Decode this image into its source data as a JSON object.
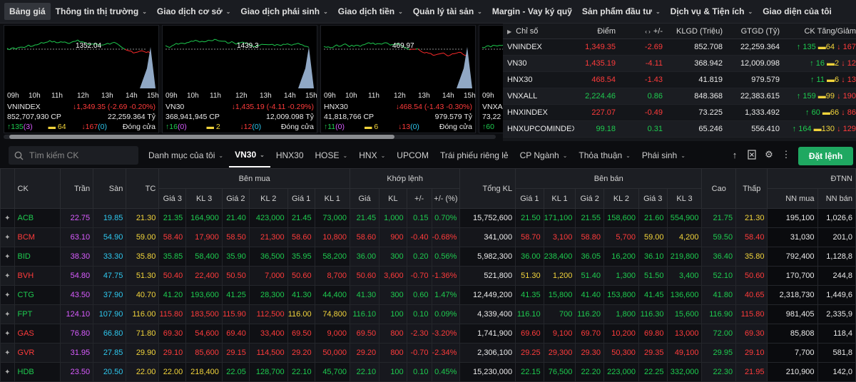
{
  "nav": [
    {
      "label": "Bảng giá",
      "active": true,
      "chev": false
    },
    {
      "label": "Thông tin thị trường",
      "chev": true
    },
    {
      "label": "Giao dịch cơ sở",
      "chev": true
    },
    {
      "label": "Giao dịch phái sinh",
      "chev": true
    },
    {
      "label": "Giao dịch tiền",
      "chev": true
    },
    {
      "label": "Quản lý tài sản",
      "chev": true
    },
    {
      "label": "Margin - Vay ký quỹ",
      "chev": false
    },
    {
      "label": "Sản phẩm đầu tư",
      "chev": true
    },
    {
      "label": "Dịch vụ & Tiện ích",
      "chev": true
    },
    {
      "label": "Giao diện của tôi",
      "chev": false
    }
  ],
  "charts": [
    {
      "ref": "1352.04",
      "name": "VNINDEX",
      "change": "↓1,349.35 (-2.69 -0.20%)",
      "vol": "852,707,930 CP",
      "val": "22,259.364 Tỷ",
      "up": "↑135",
      "up2": "(3)",
      "ref_n": "64",
      "down": "↓167",
      "down2": "(0)",
      "status": "Đóng cửa"
    },
    {
      "ref": "1439.3",
      "name": "VN30",
      "change": "↓1,435.19 (-4.11 -0.29%)",
      "vol": "368,941,945 CP",
      "val": "12,009.098 Tỷ",
      "up": "↑16",
      "up2": "(0)",
      "ref_n": "2",
      "down": "↓12",
      "down2": "(0)",
      "status": "Đóng cửa"
    },
    {
      "ref": "469.97",
      "name": "HNX30",
      "change": "↓468.54 (-1.43 -0.30%)",
      "vol": "41,818,766 CP",
      "val": "979.579 Tỷ",
      "up": "↑11",
      "up2": "(0)",
      "ref_n": "6",
      "down": "↓13",
      "down2": "(0)",
      "status": "Đóng cửa"
    },
    {
      "ref": "",
      "name": "VNXAL",
      "change": "",
      "vol": "73,22",
      "val": "",
      "up": "↑60",
      "up2": "",
      "ref_n": "",
      "down": "",
      "down2": "",
      "status": ""
    }
  ],
  "chart_times": [
    "09h",
    "10h",
    "11h",
    "12h",
    "13h",
    "14h",
    "15h"
  ],
  "indices": {
    "headers": [
      "Chỉ số",
      "Điểm",
      "+/-",
      "KLGD (Triệu)",
      "GTGD (Tỷ)",
      "CK Tăng/Giảm"
    ],
    "rows": [
      {
        "name": "VNINDEX",
        "point": "1,349.35",
        "chg": "-2.69",
        "vol": "852.708",
        "val": "22,259.364",
        "up": "↑ 135",
        "ref": "64",
        "down": "↓ 167",
        "pc": "red",
        "cc": "red"
      },
      {
        "name": "VN30",
        "point": "1,435.19",
        "chg": "-4.11",
        "vol": "368.942",
        "val": "12,009.098",
        "up": "↑ 16",
        "ref": "2",
        "down": "↓ 12",
        "pc": "red",
        "cc": "red"
      },
      {
        "name": "HNX30",
        "point": "468.54",
        "chg": "-1.43",
        "vol": "41.819",
        "val": "979.579",
        "up": "↑ 11",
        "ref": "6",
        "down": "↓ 13",
        "pc": "red",
        "cc": "red"
      },
      {
        "name": "VNXALL",
        "point": "2,224.46",
        "chg": "0.86",
        "vol": "848.368",
        "val": "22,383.615",
        "up": "↑ 159",
        "ref": "99",
        "down": "↓ 190",
        "pc": "green",
        "cc": "green"
      },
      {
        "name": "HNXINDEX",
        "point": "227.07",
        "chg": "-0.49",
        "vol": "73.225",
        "val": "1,333.492",
        "up": "↑ 60",
        "ref": "66",
        "down": "↓ 86",
        "pc": "red",
        "cc": "red"
      },
      {
        "name": "HNXUPCOMINDEX",
        "point": "99.18",
        "chg": "0.31",
        "vol": "65.246",
        "val": "556.410",
        "up": "↑ 164",
        "ref": "130",
        "down": "↓ 129",
        "pc": "green",
        "cc": "green"
      }
    ]
  },
  "search": {
    "placeholder": "Tìm kiếm CK"
  },
  "tabs": [
    {
      "label": "Danh mục của tôi",
      "chev": true
    },
    {
      "label": "VN30",
      "chev": true,
      "active": true
    },
    {
      "label": "HNX30"
    },
    {
      "label": "HOSE",
      "chev": true
    },
    {
      "label": "HNX",
      "chev": true
    },
    {
      "label": "UPCOM"
    },
    {
      "label": "Trái phiếu riêng lẻ"
    },
    {
      "label": "CP Ngành",
      "chev": true
    },
    {
      "label": "Thỏa thuận",
      "chev": true
    },
    {
      "label": "Phái sinh",
      "chev": true
    }
  ],
  "order_button": "Đặt lệnh",
  "table": {
    "h1": {
      "ck": "CK",
      "ceil": "Trần",
      "floor": "Sàn",
      "ref": "TC",
      "buy": "Bên mua",
      "match": "Khớp lệnh",
      "total": "Tổng KL",
      "sell": "Bên bán",
      "high": "Cao",
      "low": "Thấp",
      "foreign": "ĐTNN"
    },
    "h2": [
      "Giá 3",
      "KL 3",
      "Giá 2",
      "KL 2",
      "Giá 1",
      "KL 1",
      "Giá",
      "KL",
      "+/-",
      "+/- (%)",
      "Giá 1",
      "KL 1",
      "Giá 2",
      "KL 2",
      "Giá 3",
      "KL 3",
      "NN mua",
      "NN bán"
    ],
    "rows": [
      [
        "ACB",
        "22.75",
        "19.85",
        "21.30",
        "21.35",
        "164,900",
        "21.40",
        "423,000",
        "21.45",
        "73,000",
        "21.45",
        "1,000",
        "0.15",
        "0.70%",
        "15,752,600",
        "21.50",
        "171,100",
        "21.55",
        "158,600",
        "21.60",
        "554,900",
        "21.75",
        "21.30",
        "195,100",
        "1,026,6"
      ],
      [
        "BCM",
        "63.10",
        "54.90",
        "59.00",
        "58.40",
        "17,900",
        "58.50",
        "21,300",
        "58.60",
        "10,800",
        "58.60",
        "900",
        "-0.40",
        "-0.68%",
        "341,000",
        "58.70",
        "3,100",
        "58.80",
        "5,700",
        "59.00",
        "4,200",
        "59.50",
        "58.40",
        "31,030",
        "201,0"
      ],
      [
        "BID",
        "38.30",
        "33.30",
        "35.80",
        "35.85",
        "58,400",
        "35.90",
        "36,500",
        "35.95",
        "58,200",
        "36.00",
        "300",
        "0.20",
        "0.56%",
        "5,982,300",
        "36.00",
        "238,400",
        "36.05",
        "16,200",
        "36.10",
        "219,800",
        "36.40",
        "35.80",
        "792,400",
        "1,128,8"
      ],
      [
        "BVH",
        "54.80",
        "47.75",
        "51.30",
        "50.40",
        "22,400",
        "50.50",
        "7,000",
        "50.60",
        "8,700",
        "50.60",
        "3,600",
        "-0.70",
        "-1.36%",
        "521,800",
        "51.30",
        "1,200",
        "51.40",
        "1,300",
        "51.50",
        "3,400",
        "52.10",
        "50.60",
        "170,700",
        "244,8"
      ],
      [
        "CTG",
        "43.50",
        "37.90",
        "40.70",
        "41.20",
        "193,600",
        "41.25",
        "28,300",
        "41.30",
        "44,400",
        "41.30",
        "300",
        "0.60",
        "1.47%",
        "12,449,200",
        "41.35",
        "15,800",
        "41.40",
        "153,800",
        "41.45",
        "136,600",
        "41.80",
        "40.65",
        "2,318,730",
        "1,449,6"
      ],
      [
        "FPT",
        "124.10",
        "107.90",
        "116.00",
        "115.80",
        "183,500",
        "115.90",
        "112,500",
        "116.00",
        "74,800",
        "116.10",
        "100",
        "0.10",
        "0.09%",
        "4,339,400",
        "116.10",
        "700",
        "116.20",
        "1,800",
        "116.30",
        "15,600",
        "116.90",
        "115.80",
        "981,405",
        "2,335,9"
      ],
      [
        "GAS",
        "76.80",
        "66.80",
        "71.80",
        "69.30",
        "54,600",
        "69.40",
        "33,400",
        "69.50",
        "9,000",
        "69.50",
        "800",
        "-2.30",
        "-3.20%",
        "1,741,900",
        "69.60",
        "9,100",
        "69.70",
        "10,200",
        "69.80",
        "13,000",
        "72.00",
        "69.30",
        "85,808",
        "118,4"
      ],
      [
        "GVR",
        "31.95",
        "27.85",
        "29.90",
        "29.10",
        "85,600",
        "29.15",
        "114,500",
        "29.20",
        "50,000",
        "29.20",
        "800",
        "-0.70",
        "-2.34%",
        "2,306,100",
        "29.25",
        "29,300",
        "29.30",
        "50,300",
        "29.35",
        "49,100",
        "29.95",
        "29.10",
        "7,700",
        "581,8"
      ],
      [
        "HDB",
        "23.50",
        "20.50",
        "22.00",
        "22.00",
        "218,400",
        "22.05",
        "128,700",
        "22.10",
        "45,700",
        "22.10",
        "100",
        "0.10",
        "0.45%",
        "15,230,000",
        "22.15",
        "76,500",
        "22.20",
        "223,000",
        "22.25",
        "332,000",
        "22.30",
        "21.95",
        "210,900",
        "142,0"
      ]
    ],
    "colors": [
      [
        "green",
        "purple",
        "cyan",
        "yellow",
        "green",
        "green",
        "green",
        "green",
        "green",
        "green",
        "green",
        "green",
        "green",
        "green",
        "white",
        "green",
        "green",
        "green",
        "green",
        "green",
        "green",
        "green",
        "yellow",
        "white",
        "white"
      ],
      [
        "red",
        "purple",
        "cyan",
        "yellow",
        "red",
        "red",
        "red",
        "red",
        "red",
        "red",
        "red",
        "red",
        "red",
        "red",
        "white",
        "red",
        "red",
        "red",
        "red",
        "yellow",
        "yellow",
        "green",
        "red",
        "white",
        "white"
      ],
      [
        "green",
        "purple",
        "cyan",
        "yellow",
        "green",
        "green",
        "green",
        "green",
        "green",
        "green",
        "green",
        "green",
        "green",
        "green",
        "white",
        "green",
        "green",
        "green",
        "green",
        "green",
        "green",
        "green",
        "yellow",
        "white",
        "white"
      ],
      [
        "red",
        "purple",
        "cyan",
        "yellow",
        "red",
        "red",
        "red",
        "red",
        "red",
        "red",
        "red",
        "red",
        "red",
        "red",
        "white",
        "yellow",
        "yellow",
        "green",
        "green",
        "green",
        "green",
        "green",
        "red",
        "white",
        "white"
      ],
      [
        "green",
        "purple",
        "cyan",
        "yellow",
        "green",
        "green",
        "green",
        "green",
        "green",
        "green",
        "green",
        "green",
        "green",
        "green",
        "white",
        "green",
        "green",
        "green",
        "green",
        "green",
        "green",
        "green",
        "red",
        "white",
        "white"
      ],
      [
        "green",
        "purple",
        "cyan",
        "yellow",
        "red",
        "red",
        "red",
        "red",
        "yellow",
        "yellow",
        "green",
        "green",
        "green",
        "green",
        "white",
        "green",
        "green",
        "green",
        "green",
        "green",
        "green",
        "green",
        "red",
        "white",
        "white"
      ],
      [
        "red",
        "purple",
        "cyan",
        "yellow",
        "red",
        "red",
        "red",
        "red",
        "red",
        "red",
        "red",
        "red",
        "red",
        "red",
        "white",
        "red",
        "red",
        "red",
        "red",
        "red",
        "red",
        "green",
        "red",
        "white",
        "white"
      ],
      [
        "red",
        "purple",
        "cyan",
        "yellow",
        "red",
        "red",
        "red",
        "red",
        "red",
        "red",
        "red",
        "red",
        "red",
        "red",
        "white",
        "red",
        "red",
        "red",
        "red",
        "red",
        "red",
        "green",
        "red",
        "white",
        "white"
      ],
      [
        "green",
        "purple",
        "cyan",
        "yellow",
        "yellow",
        "yellow",
        "green",
        "green",
        "green",
        "green",
        "green",
        "green",
        "green",
        "green",
        "white",
        "green",
        "green",
        "green",
        "green",
        "green",
        "green",
        "green",
        "red",
        "white",
        "white"
      ]
    ]
  }
}
